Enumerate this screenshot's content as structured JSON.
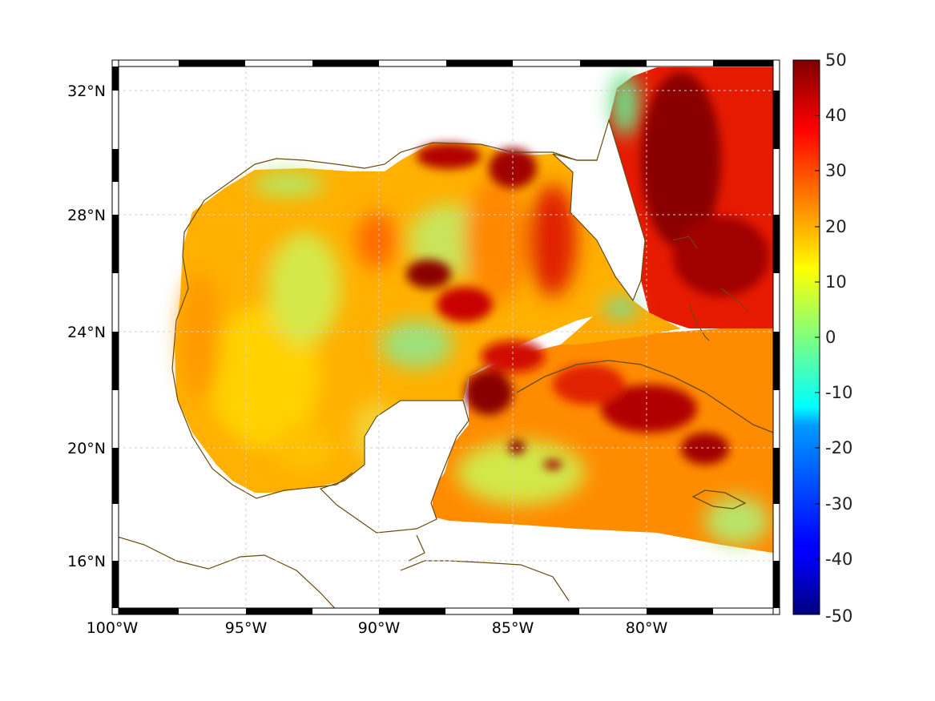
{
  "map": {
    "type": "heatmap-map",
    "extent": {
      "lon": [
        -100,
        -75
      ],
      "lat": [
        14,
        33
      ]
    },
    "longitude_ticks": [
      "100°W",
      "95°W",
      "90°W",
      "85°W",
      "80°W"
    ],
    "latitude_ticks": [
      "32°N",
      "28°N",
      "24°N",
      "20°N",
      "16°N"
    ],
    "grid": true,
    "coastline_color": "#6b4a10",
    "frame": "black-and-white checkered border"
  },
  "colorbar": {
    "ticks": [
      "50",
      "40",
      "30",
      "20",
      "10",
      "0",
      "-10",
      "-20",
      "-30",
      "-40",
      "-50"
    ],
    "range": [
      -50,
      50
    ],
    "colormap": "jet",
    "position": "right"
  }
}
